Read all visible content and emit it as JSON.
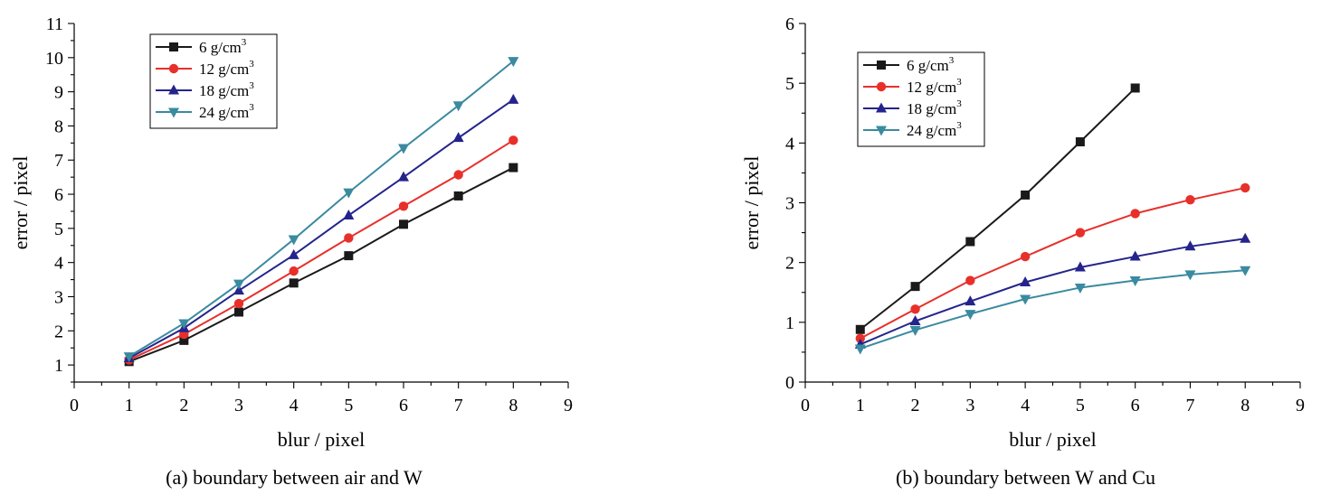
{
  "chart_data": [
    {
      "type": "line",
      "title": "",
      "caption": "(a) boundary between air and W",
      "xlabel": "blur / pixel",
      "ylabel": "error / pixel",
      "xlim": [
        0,
        9
      ],
      "ylim": [
        0.5,
        11
      ],
      "xticks": [
        0,
        1,
        2,
        3,
        4,
        5,
        6,
        7,
        8,
        9
      ],
      "yticks": [
        1,
        2,
        3,
        4,
        5,
        6,
        7,
        8,
        9,
        10,
        11
      ],
      "legend_position": "top-left",
      "series": [
        {
          "name": "6 g/cm",
          "sup": "3",
          "color": "#1a1a1a",
          "marker": "square",
          "x": [
            1,
            2,
            3,
            4,
            5,
            6,
            7,
            8
          ],
          "y": [
            1.1,
            1.72,
            2.55,
            3.4,
            4.2,
            5.12,
            5.95,
            6.78
          ]
        },
        {
          "name": "12 g/cm",
          "sup": "3",
          "color": "#e8302a",
          "marker": "circle",
          "x": [
            1,
            2,
            3,
            4,
            5,
            6,
            7,
            8
          ],
          "y": [
            1.15,
            1.9,
            2.8,
            3.75,
            4.72,
            5.65,
            6.57,
            7.58
          ]
        },
        {
          "name": "18 g/cm",
          "sup": "3",
          "color": "#24248c",
          "marker": "triangle-up",
          "x": [
            1,
            2,
            3,
            4,
            5,
            6,
            7,
            8
          ],
          "y": [
            1.2,
            2.08,
            3.18,
            4.22,
            5.38,
            6.5,
            7.65,
            8.77
          ]
        },
        {
          "name": "24 g/cm",
          "sup": "3",
          "color": "#3a8aa0",
          "marker": "triangle-down",
          "x": [
            1,
            2,
            3,
            4,
            5,
            6,
            7,
            8
          ],
          "y": [
            1.25,
            2.22,
            3.38,
            4.68,
            6.05,
            7.35,
            8.6,
            9.9
          ]
        }
      ]
    },
    {
      "type": "line",
      "title": "",
      "caption": "(b) boundary between W and Cu",
      "xlabel": "blur / pixel",
      "ylabel": "error / pixel",
      "xlim": [
        0,
        9
      ],
      "ylim": [
        0,
        6
      ],
      "xticks": [
        0,
        1,
        2,
        3,
        4,
        5,
        6,
        7,
        8,
        9
      ],
      "yticks": [
        0,
        1,
        2,
        3,
        4,
        5,
        6
      ],
      "legend_position": "top-left",
      "series": [
        {
          "name": "6 g/cm",
          "sup": "3",
          "color": "#1a1a1a",
          "marker": "square",
          "x": [
            1,
            2,
            3,
            4,
            5,
            6
          ],
          "y": [
            0.88,
            1.6,
            2.35,
            3.13,
            4.02,
            4.92
          ]
        },
        {
          "name": "12 g/cm",
          "sup": "3",
          "color": "#e8302a",
          "marker": "circle",
          "x": [
            1,
            2,
            3,
            4,
            5,
            6,
            7,
            8
          ],
          "y": [
            0.73,
            1.22,
            1.7,
            2.1,
            2.5,
            2.82,
            3.05,
            3.25
          ]
        },
        {
          "name": "18 g/cm",
          "sup": "3",
          "color": "#24248c",
          "marker": "triangle-up",
          "x": [
            1,
            2,
            3,
            4,
            5,
            6,
            7,
            8
          ],
          "y": [
            0.63,
            1.02,
            1.35,
            1.67,
            1.92,
            2.1,
            2.27,
            2.4
          ]
        },
        {
          "name": "24 g/cm",
          "sup": "3",
          "color": "#3a8aa0",
          "marker": "triangle-down",
          "x": [
            1,
            2,
            3,
            4,
            5,
            6,
            7,
            8
          ],
          "y": [
            0.56,
            0.87,
            1.14,
            1.39,
            1.58,
            1.7,
            1.8,
            1.87
          ]
        }
      ]
    }
  ]
}
